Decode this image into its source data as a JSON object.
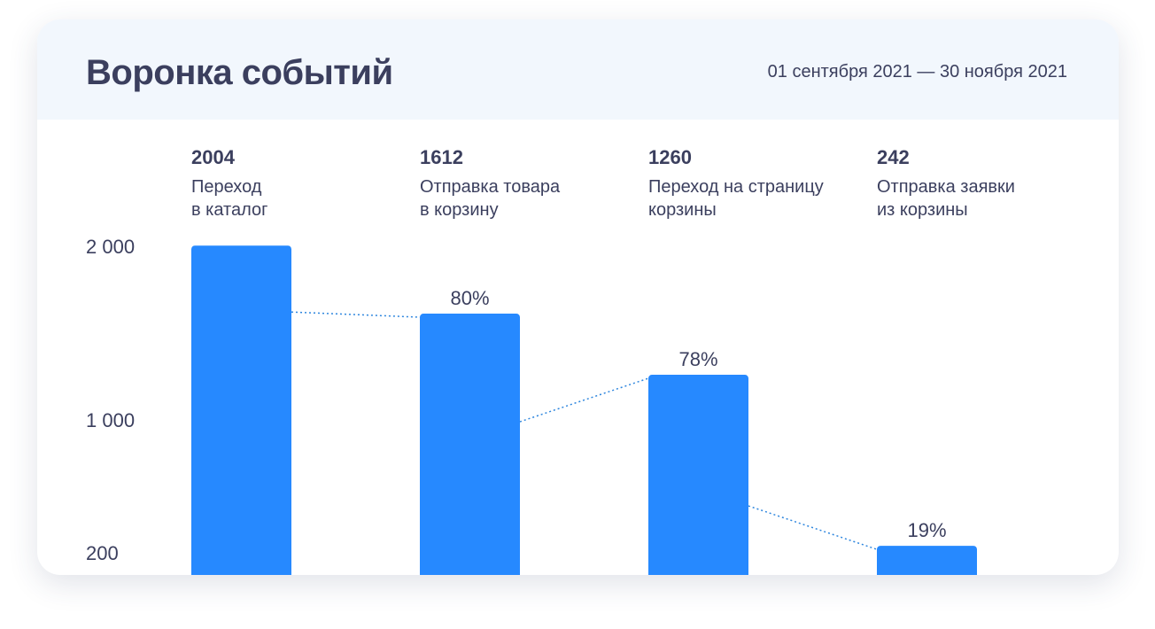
{
  "header": {
    "title": "Воронка событий",
    "date_range": "01 сентября 2021 — 30 ноября 2021"
  },
  "colors": {
    "bar": "#2689ff",
    "connector": "#2e86de",
    "text": "#3b3f5e",
    "header_bg": "#f2f7fd"
  },
  "chart_data": {
    "type": "bar",
    "title": "Воронка событий",
    "categories": [
      [
        "Переход",
        "в каталог"
      ],
      [
        "Отправка товара",
        "в корзину"
      ],
      [
        "Переход на страницу",
        "корзины"
      ],
      [
        "Отправка заявки",
        "из корзины"
      ]
    ],
    "values": [
      2004,
      1612,
      1260,
      242
    ],
    "value_labels": [
      "2004",
      "1612",
      "1260",
      "242"
    ],
    "conversion_labels": [
      "",
      "80%",
      "78%",
      "19%"
    ],
    "y_ticks": [
      {
        "value": 2000,
        "label": "2 000"
      },
      {
        "value": 1000,
        "label": "1 000"
      },
      {
        "value": 200,
        "label": "200"
      }
    ],
    "grid": false,
    "legend": "none"
  }
}
